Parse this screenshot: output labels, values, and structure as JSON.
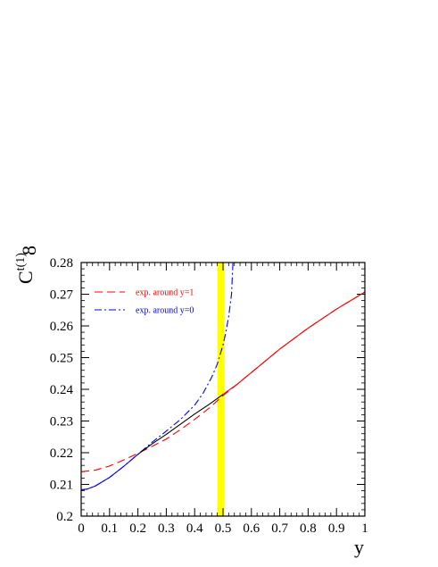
{
  "chart_data": {
    "type": "line",
    "xlabel": "y",
    "ylabel": {
      "main": "C",
      "sup": "t(1)",
      "sub": "8"
    },
    "xlim": [
      0,
      1
    ],
    "ylim": [
      0.2,
      0.28
    ],
    "xticks": [
      "0",
      "0.1",
      "0.2",
      "0.3",
      "0.4",
      "0.5",
      "0.6",
      "0.7",
      "0.8",
      "0.9",
      "1"
    ],
    "yticks": [
      "0.2",
      "0.21",
      "0.22",
      "0.23",
      "0.24",
      "0.25",
      "0.26",
      "0.27",
      "0.28"
    ],
    "band": {
      "x_range": [
        0.48,
        0.505
      ],
      "color": "#ffff00"
    },
    "series": [
      {
        "name": "exp. around y=1",
        "style": "dashed",
        "color": "#ff0000",
        "x": [
          0,
          0.05,
          0.1,
          0.15,
          0.2,
          0.25,
          0.3,
          0.35,
          0.4,
          0.45,
          0.5,
          0.55,
          0.6,
          0.65,
          0.7,
          0.75,
          0.8,
          0.85,
          0.9,
          0.95,
          1.0
        ],
        "y": [
          0.214,
          0.2145,
          0.2158,
          0.2177,
          0.2198,
          0.222,
          0.2243,
          0.2273,
          0.2305,
          0.234,
          0.238,
          0.2416,
          0.2453,
          0.249,
          0.2527,
          0.256,
          0.2593,
          0.2623,
          0.2653,
          0.268,
          0.2707
        ]
      },
      {
        "name": "exp. around y=0",
        "style": "dashdot",
        "color": "#0000ff",
        "x": [
          0,
          0.02,
          0.05,
          0.1,
          0.15,
          0.2,
          0.25,
          0.3,
          0.35,
          0.4,
          0.43,
          0.46,
          0.48,
          0.5,
          0.51,
          0.52,
          0.53,
          0.535
        ],
        "y": [
          0.2083,
          0.2085,
          0.2095,
          0.2122,
          0.2157,
          0.2195,
          0.2233,
          0.2268,
          0.2305,
          0.235,
          0.2388,
          0.2438,
          0.248,
          0.254,
          0.258,
          0.263,
          0.27,
          0.28
        ]
      },
      {
        "name": "",
        "style": "solid",
        "color": "#000000",
        "x": [
          0.2,
          0.25,
          0.3,
          0.35,
          0.4,
          0.45,
          0.5
        ],
        "y": [
          0.2195,
          0.2228,
          0.2258,
          0.229,
          0.2322,
          0.2352,
          0.2384
        ]
      },
      {
        "name": "",
        "style": "solid",
        "color": "#ff0000",
        "x": [
          0.5,
          0.55,
          0.6,
          0.65,
          0.7,
          0.75,
          0.8,
          0.85,
          0.9,
          0.95,
          1.0
        ],
        "y": [
          0.2384,
          0.2416,
          0.2453,
          0.249,
          0.2527,
          0.256,
          0.2593,
          0.2623,
          0.2653,
          0.268,
          0.2707
        ]
      },
      {
        "name": "",
        "style": "solid",
        "color": "#0000ff",
        "x": [
          0,
          0.02,
          0.05,
          0.1,
          0.15,
          0.2
        ],
        "y": [
          0.2083,
          0.2085,
          0.2095,
          0.2122,
          0.2157,
          0.2195
        ]
      }
    ]
  }
}
